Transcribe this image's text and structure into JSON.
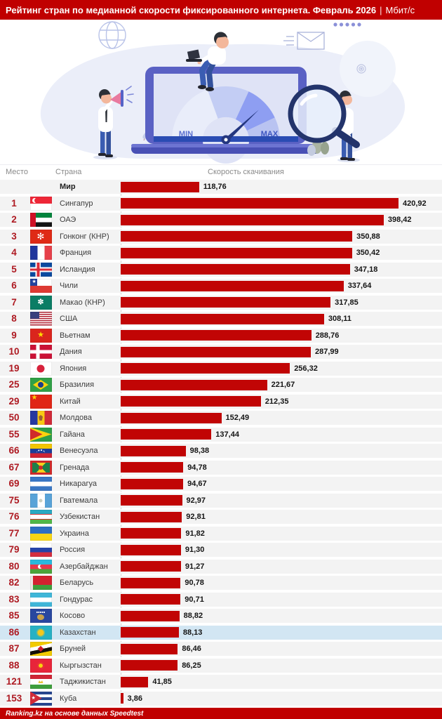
{
  "title": {
    "text": "Рейтинг стран по медианной скорости фиксированного интернета. Февраль 2026",
    "separator": "|",
    "unit": "Мбит/с"
  },
  "header": {
    "rank": "Место",
    "country": "Страна",
    "speed": "Скорость скачивания"
  },
  "illustration": {
    "min": "MIN",
    "max": "MAX"
  },
  "footer": {
    "credit": "Ranking.kz на основе данных Speedtest"
  },
  "colors": {
    "accent_red": "#c00000",
    "bar_red": "#c10505",
    "rank_red": "#ae1a22",
    "row_bg": "#f3f3f3",
    "highlight_row_bg": "#d2e6f3"
  },
  "chart_data": {
    "type": "bar",
    "title": "Рейтинг стран по медианной скорости фиксированного интернета. Февраль 2026",
    "unit": "Мбит/с",
    "xlim": [
      0,
      450
    ],
    "source": "Ranking.kz на основе данных Speedtest",
    "highlighted_country": "Казахстан",
    "rows": [
      {
        "rank": "",
        "country": "Мир",
        "flag": "",
        "value": 118.76,
        "label": "118,76",
        "world": true
      },
      {
        "rank": "1",
        "country": "Сингапур",
        "flag": "sg",
        "value": 420.92,
        "label": "420,92"
      },
      {
        "rank": "2",
        "country": "ОАЭ",
        "flag": "ae",
        "value": 398.42,
        "label": "398,42"
      },
      {
        "rank": "3",
        "country": "Гонконг (КНР)",
        "flag": "hk",
        "value": 350.88,
        "label": "350,88"
      },
      {
        "rank": "4",
        "country": "Франция",
        "flag": "fr",
        "value": 350.42,
        "label": "350,42"
      },
      {
        "rank": "5",
        "country": "Исландия",
        "flag": "is",
        "value": 347.18,
        "label": "347,18"
      },
      {
        "rank": "6",
        "country": "Чили",
        "flag": "cl",
        "value": 337.64,
        "label": "337,64"
      },
      {
        "rank": "7",
        "country": "Макао (КНР)",
        "flag": "mo",
        "value": 317.85,
        "label": "317,85"
      },
      {
        "rank": "8",
        "country": "США",
        "flag": "us",
        "value": 308.11,
        "label": "308,11"
      },
      {
        "rank": "9",
        "country": "Вьетнам",
        "flag": "vn",
        "value": 288.76,
        "label": "288,76"
      },
      {
        "rank": "10",
        "country": "Дания",
        "flag": "dk",
        "value": 287.99,
        "label": "287,99"
      },
      {
        "rank": "19",
        "country": "Япония",
        "flag": "jp",
        "value": 256.32,
        "label": "256,32"
      },
      {
        "rank": "25",
        "country": "Бразилия",
        "flag": "br",
        "value": 221.67,
        "label": "221,67"
      },
      {
        "rank": "29",
        "country": "Китай",
        "flag": "cn",
        "value": 212.35,
        "label": "212,35"
      },
      {
        "rank": "50",
        "country": "Молдова",
        "flag": "md",
        "value": 152.49,
        "label": "152,49"
      },
      {
        "rank": "55",
        "country": "Гайана",
        "flag": "gy",
        "value": 137.44,
        "label": "137,44"
      },
      {
        "rank": "66",
        "country": "Венесуэла",
        "flag": "ve",
        "value": 98.38,
        "label": "98,38"
      },
      {
        "rank": "67",
        "country": "Гренада",
        "flag": "gd",
        "value": 94.78,
        "label": "94,78"
      },
      {
        "rank": "69",
        "country": "Никарагуа",
        "flag": "ni",
        "value": 94.67,
        "label": "94,67"
      },
      {
        "rank": "75",
        "country": "Гватемала",
        "flag": "gt",
        "value": 92.97,
        "label": "92,97"
      },
      {
        "rank": "76",
        "country": "Узбекистан",
        "flag": "uz",
        "value": 92.81,
        "label": "92,81"
      },
      {
        "rank": "77",
        "country": "Украина",
        "flag": "ua",
        "value": 91.82,
        "label": "91,82"
      },
      {
        "rank": "79",
        "country": "Россия",
        "flag": "ru",
        "value": 91.3,
        "label": "91,30"
      },
      {
        "rank": "80",
        "country": "Азербайджан",
        "flag": "az",
        "value": 91.27,
        "label": "91,27"
      },
      {
        "rank": "82",
        "country": "Беларусь",
        "flag": "by",
        "value": 90.78,
        "label": "90,78"
      },
      {
        "rank": "83",
        "country": "Гондурас",
        "flag": "hn",
        "value": 90.71,
        "label": "90,71"
      },
      {
        "rank": "85",
        "country": "Косово",
        "flag": "xk",
        "value": 88.82,
        "label": "88,82"
      },
      {
        "rank": "86",
        "country": "Казахстан",
        "flag": "kz",
        "value": 88.13,
        "label": "88,13",
        "highlight": true
      },
      {
        "rank": "87",
        "country": "Бруней",
        "flag": "bn",
        "value": 86.46,
        "label": "86,46"
      },
      {
        "rank": "88",
        "country": "Кыргызстан",
        "flag": "kg",
        "value": 86.25,
        "label": "86,25"
      },
      {
        "rank": "121",
        "country": "Таджикистан",
        "flag": "tj",
        "value": 41.85,
        "label": "41,85"
      },
      {
        "rank": "153",
        "country": "Куба",
        "flag": "cu",
        "value": 3.86,
        "label": "3,86"
      }
    ]
  }
}
